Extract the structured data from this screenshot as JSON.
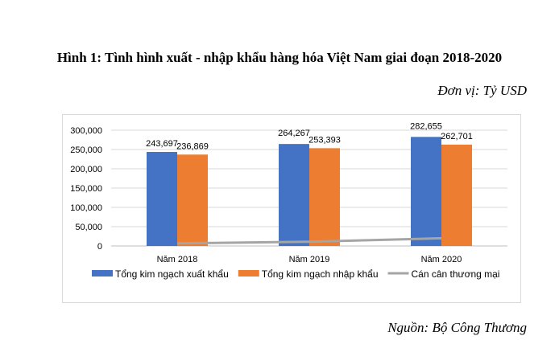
{
  "title": "Hình 1: Tình hình xuất - nhập khẩu hàng hóa Việt Nam giai đoạn 2018-2020",
  "unit": "Đơn vị: Tỷ USD",
  "source": "Nguồn: Bộ Công Thương",
  "chart_data": {
    "type": "bar",
    "categories": [
      "Năm 2018",
      "Năm 2019",
      "Năm 2020"
    ],
    "series": [
      {
        "name": "Tổng kim ngạch xuất khẩu",
        "type": "bar",
        "color": "#4472C4",
        "values": [
          243697,
          264267,
          282655
        ],
        "labels": [
          "243,697",
          "264,267",
          "282,655"
        ]
      },
      {
        "name": "Tổng kim ngạch nhập khẩu",
        "type": "bar",
        "color": "#ED7D31",
        "values": [
          236869,
          253393,
          262701
        ],
        "labels": [
          "236,869",
          "253,393",
          "262,701"
        ]
      },
      {
        "name": "Cán cân thương mại",
        "type": "line",
        "color": "#A5A5A5",
        "values": [
          6828,
          10874,
          19954
        ]
      }
    ],
    "ylim": [
      0,
      300000
    ],
    "yticks": [
      0,
      50000,
      100000,
      150000,
      200000,
      250000,
      300000
    ],
    "ytick_labels": [
      "0",
      "50,000",
      "100,000",
      "150,000",
      "200,000",
      "250,000",
      "300,000"
    ],
    "grid": true,
    "legend": "bottom"
  }
}
